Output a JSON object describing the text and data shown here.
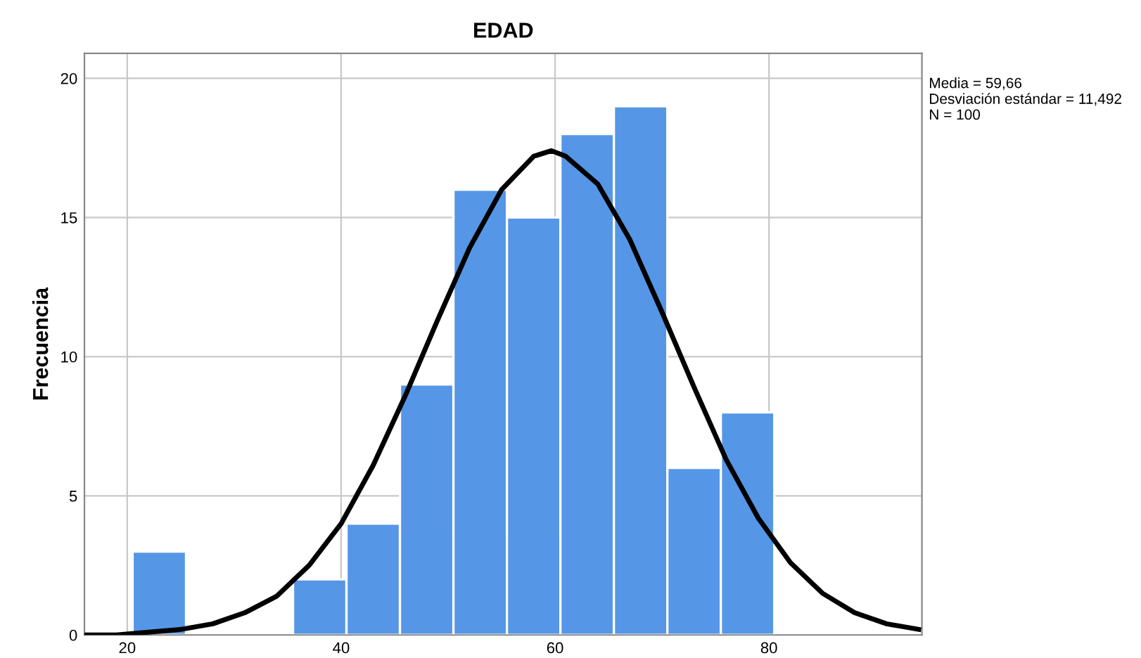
{
  "chart_data": {
    "type": "histogram",
    "title": "EDAD",
    "ylabel": "Frecuencia",
    "annotations": [
      "Media = 59,66",
      "Desviación estándar = 11,492",
      "N = 100"
    ],
    "series": [
      {
        "type": "histogram",
        "color": "#5596e6",
        "bins": [
          20.5,
          25.5,
          30.5,
          35.5,
          40.5,
          45.5,
          50.5,
          55.5,
          60.5,
          65.5,
          70.5,
          75.5,
          80.5
        ],
        "values": [
          3,
          0,
          0,
          2,
          4,
          9,
          16,
          15,
          18,
          19,
          6,
          8
        ]
      },
      {
        "type": "line",
        "color": "#000000",
        "x": [
          16,
          19,
          22,
          25,
          28,
          31,
          34,
          37,
          40,
          43,
          46,
          49,
          52,
          55,
          58,
          59.66,
          61,
          64,
          67,
          70,
          73,
          76,
          79,
          82,
          85,
          88,
          91,
          94
        ],
        "values": [
          0.0,
          0.0,
          0.1,
          0.2,
          0.4,
          0.8,
          1.4,
          2.5,
          4.0,
          6.1,
          8.6,
          11.3,
          13.9,
          16.0,
          17.2,
          17.4,
          17.2,
          16.2,
          14.2,
          11.6,
          8.9,
          6.3,
          4.2,
          2.6,
          1.5,
          0.8,
          0.4,
          0.2
        ]
      }
    ],
    "xlim": [
      16,
      94.3
    ],
    "ylim": [
      0,
      20.9
    ],
    "xticks": [
      20,
      40,
      60,
      80
    ],
    "yticks": [
      0,
      5,
      10,
      15,
      20
    ],
    "grid": true
  }
}
